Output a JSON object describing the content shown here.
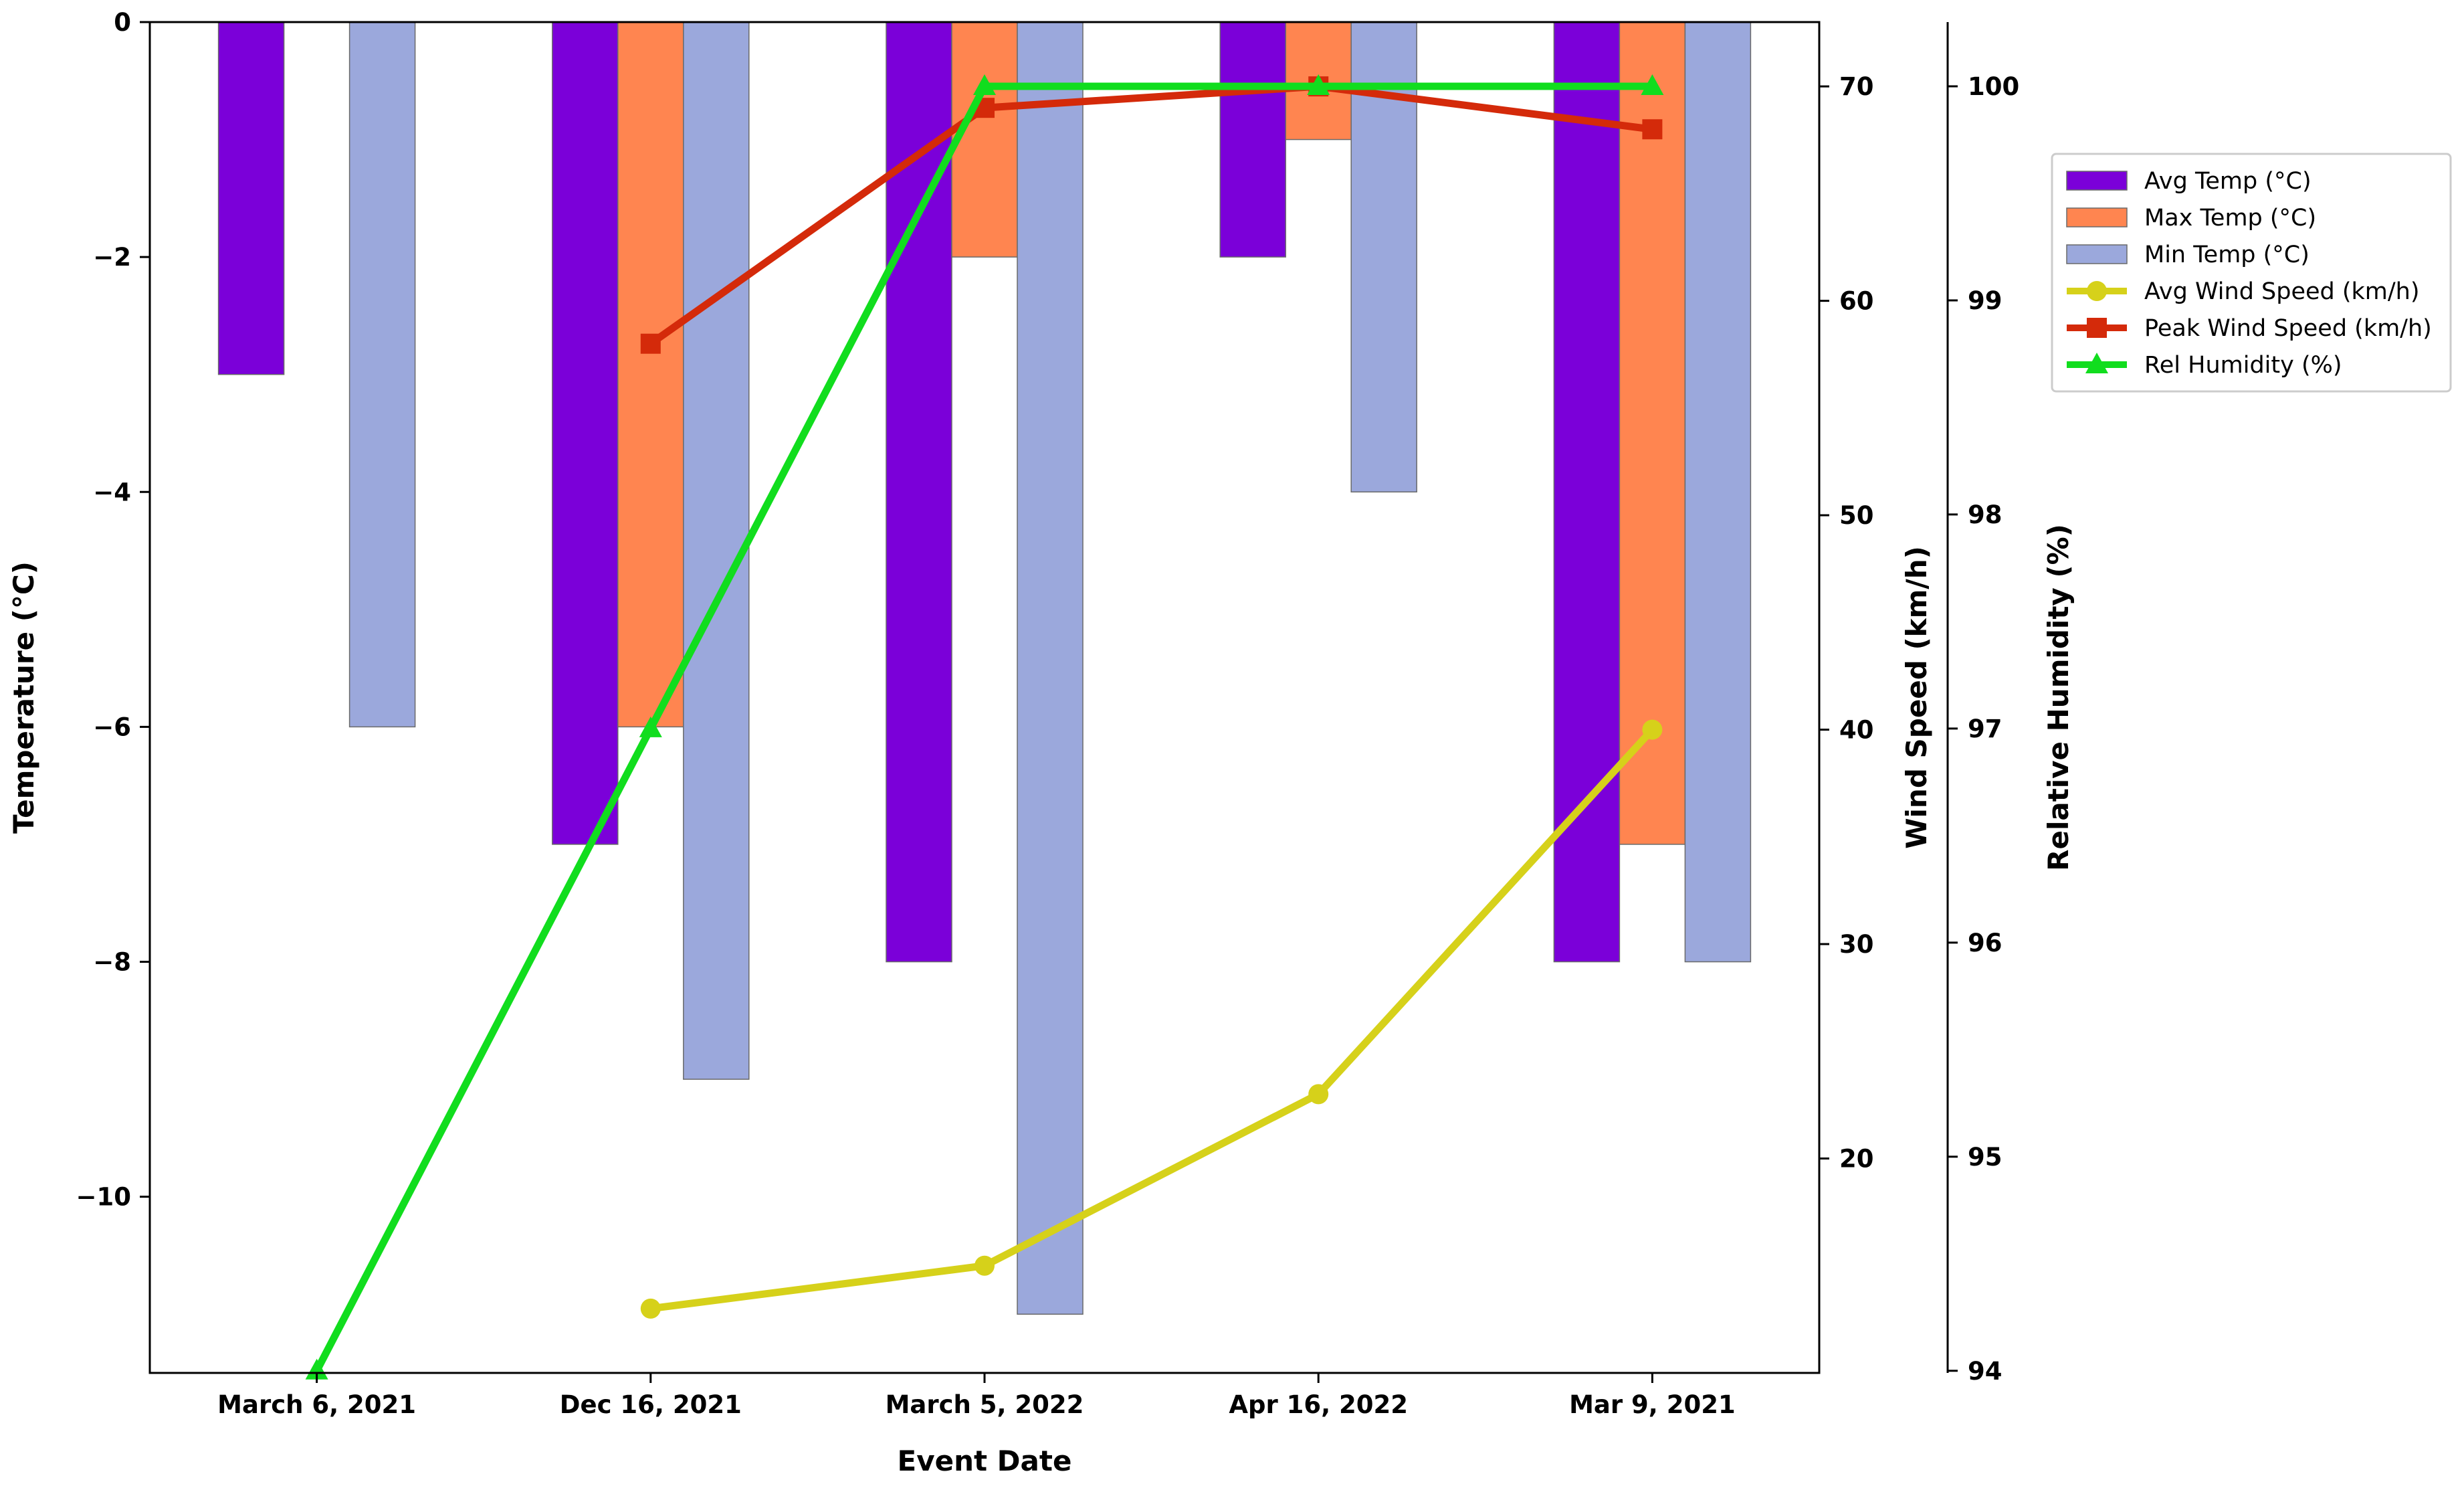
{
  "chart_data": {
    "type": "bar",
    "categories": [
      "March 6, 2021",
      "Dec 16, 2021",
      "March 5, 2022",
      "Apr 16, 2022",
      "Mar 9, 2021"
    ],
    "xlabel": "Event Date",
    "axes": {
      "temperature": {
        "label": "Temperature (°C)",
        "ylim": [
          -11.5,
          0
        ],
        "ticks": [
          0,
          -2,
          -4,
          -6,
          -8,
          -10
        ],
        "tick_labels": [
          "0",
          "−2",
          "−4",
          "−6",
          "−8",
          "−10"
        ]
      },
      "wind": {
        "label": "Wind Speed (km/h)",
        "ylim": [
          10,
          73
        ],
        "ticks": [
          20,
          30,
          40,
          50,
          60,
          70
        ],
        "tick_labels": [
          "20",
          "30",
          "40",
          "50",
          "60",
          "70"
        ]
      },
      "humidity": {
        "label": "Relative Humidity (%)",
        "ylim": [
          93.99,
          100.3
        ],
        "ticks": [
          94,
          95,
          96,
          97,
          98,
          99,
          100
        ],
        "tick_labels": [
          "94",
          "95",
          "96",
          "97",
          "98",
          "99",
          "100"
        ]
      }
    },
    "series": [
      {
        "name": "Avg Temp (°C)",
        "kind": "bar",
        "axis": "temperature",
        "color": "#7b00d9",
        "values": [
          -3,
          -7,
          -8,
          -2,
          -8
        ]
      },
      {
        "name": "Max Temp (°C)",
        "kind": "bar",
        "axis": "temperature",
        "color": "#ff8550",
        "values": [
          null,
          -6,
          -2,
          -1,
          -7
        ]
      },
      {
        "name": "Min Temp (°C)",
        "kind": "bar",
        "axis": "temperature",
        "color": "#9ba8dc",
        "values": [
          -6,
          -9,
          -11,
          -4,
          -8
        ]
      },
      {
        "name": "Avg Wind Speed (km/h)",
        "kind": "line",
        "marker": "circle",
        "axis": "wind",
        "color": "#d6d11a",
        "values": [
          null,
          13,
          15,
          23,
          40
        ]
      },
      {
        "name": "Peak Wind Speed (km/h)",
        "kind": "line",
        "marker": "square",
        "axis": "wind",
        "color": "#d42a0a",
        "values": [
          null,
          58,
          69,
          70,
          68
        ]
      },
      {
        "name": "Rel Humidity (%)",
        "kind": "line",
        "marker": "triangle",
        "axis": "humidity",
        "color": "#11dd1e",
        "values": [
          94,
          97,
          100,
          100,
          100
        ]
      }
    ],
    "legend_position": "upper right, outside plot",
    "grid": false
  }
}
